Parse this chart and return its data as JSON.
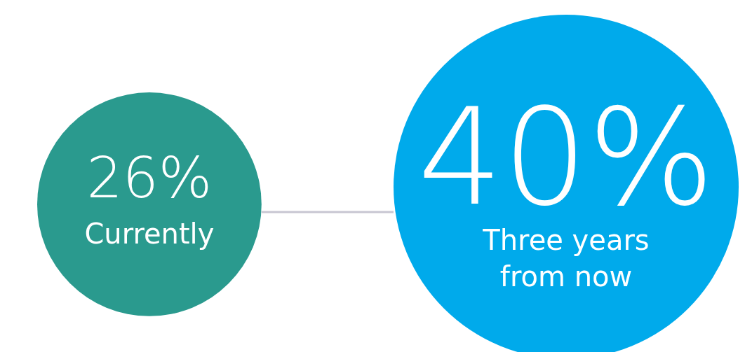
{
  "chart_data": {
    "type": "other",
    "categories": [
      "Currently",
      "Three years from now"
    ],
    "values": [
      26,
      40
    ],
    "value_labels": [
      "26%",
      "40%"
    ],
    "colors": [
      "#2a9a8e",
      "#00aaeb"
    ]
  }
}
